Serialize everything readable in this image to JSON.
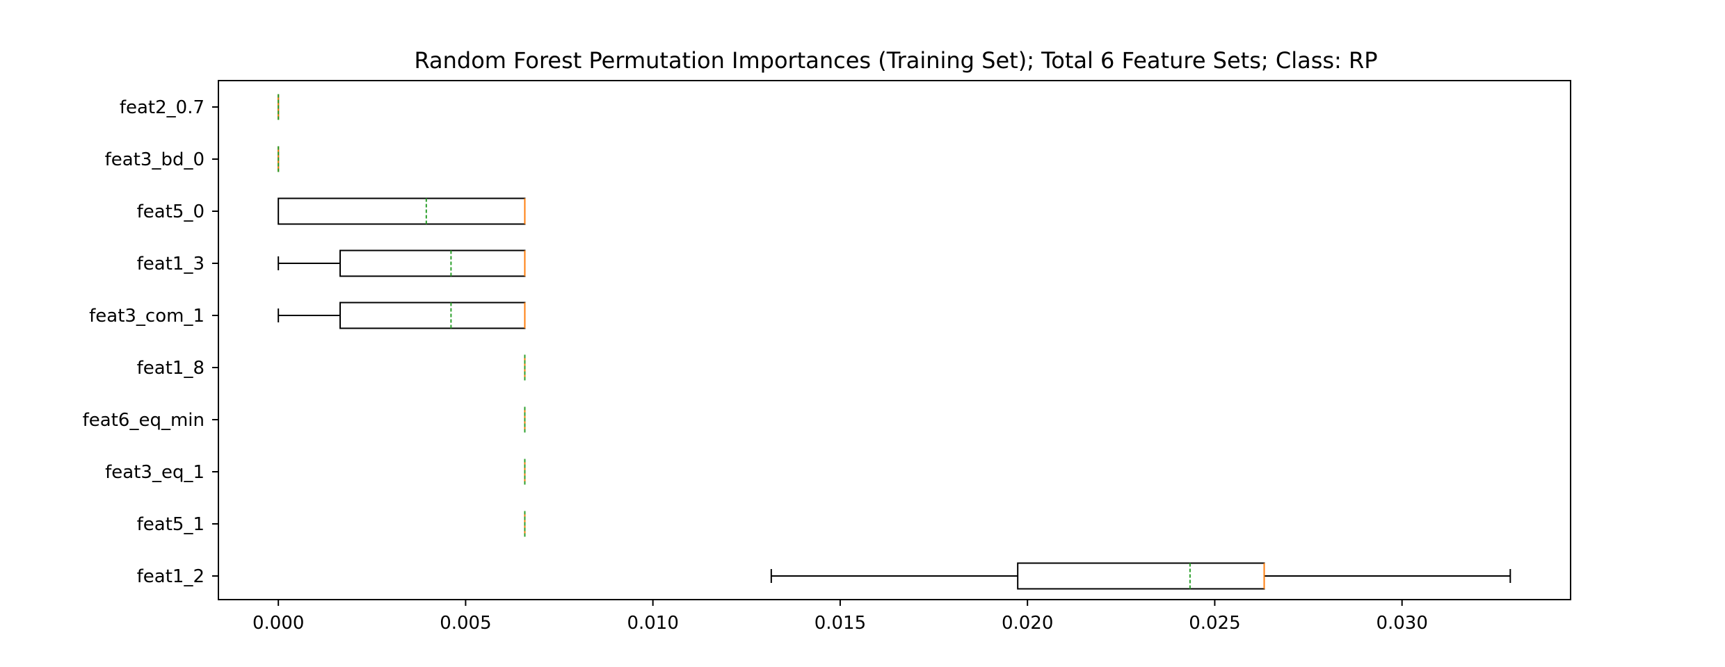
{
  "chart_data": {
    "type": "boxplot",
    "orientation": "horizontal",
    "title": "Random Forest Permutation Importances (Training Set); Total 6 Feature Sets; Class: RP",
    "xlabel": "",
    "ylabel": "",
    "xlim": [
      -0.0016,
      0.0345
    ],
    "xticks": [
      0.0,
      0.005,
      0.01,
      0.015,
      0.02,
      0.025,
      0.03
    ],
    "xtick_labels": [
      "0.000",
      "0.005",
      "0.010",
      "0.015",
      "0.020",
      "0.025",
      "0.030"
    ],
    "grid": false,
    "categories": [
      "feat2_0.7",
      "feat3_bd_0",
      "feat5_0",
      "feat1_3",
      "feat3_com_1",
      "feat1_8",
      "feat6_eq_min",
      "feat3_eq_1",
      "feat5_1",
      "feat1_2"
    ],
    "boxes": [
      {
        "label": "feat2_0.7",
        "whislo": 0.0,
        "q1": 0.0,
        "med": 0.0,
        "q3": 0.0,
        "whishi": 0.0,
        "mean": 0.0
      },
      {
        "label": "feat3_bd_0",
        "whislo": 0.0,
        "q1": 0.0,
        "med": 0.0,
        "q3": 0.0,
        "whishi": 0.0,
        "mean": 0.0
      },
      {
        "label": "feat5_0",
        "whislo": 0.0,
        "q1": 0.0,
        "med": 0.00658,
        "q3": 0.00658,
        "whishi": 0.00658,
        "mean": 0.00395
      },
      {
        "label": "feat1_3",
        "whislo": 0.0,
        "q1": 0.00165,
        "med": 0.00658,
        "q3": 0.00658,
        "whishi": 0.00658,
        "mean": 0.00461
      },
      {
        "label": "feat3_com_1",
        "whislo": 0.0,
        "q1": 0.00165,
        "med": 0.00658,
        "q3": 0.00658,
        "whishi": 0.00658,
        "mean": 0.00461
      },
      {
        "label": "feat1_8",
        "whislo": 0.00658,
        "q1": 0.00658,
        "med": 0.00658,
        "q3": 0.00658,
        "whishi": 0.00658,
        "mean": 0.00658
      },
      {
        "label": "feat6_eq_min",
        "whislo": 0.00658,
        "q1": 0.00658,
        "med": 0.00658,
        "q3": 0.00658,
        "whishi": 0.00658,
        "mean": 0.00658
      },
      {
        "label": "feat3_eq_1",
        "whislo": 0.00658,
        "q1": 0.00658,
        "med": 0.00658,
        "q3": 0.00658,
        "whishi": 0.00658,
        "mean": 0.00658
      },
      {
        "label": "feat5_1",
        "whislo": 0.00658,
        "q1": 0.00658,
        "med": 0.00658,
        "q3": 0.00658,
        "whishi": 0.00658,
        "mean": 0.00658
      },
      {
        "label": "feat1_2",
        "whislo": 0.01316,
        "q1": 0.01974,
        "med": 0.02632,
        "q3": 0.02632,
        "whishi": 0.03289,
        "mean": 0.02434
      }
    ],
    "colors": {
      "box": "#000000",
      "median": "#ff7f0e",
      "mean": "#2ca02c",
      "axes": "#000000",
      "background": "#ffffff"
    },
    "mean_line_style": "dashed",
    "median_line_style": "solid"
  }
}
